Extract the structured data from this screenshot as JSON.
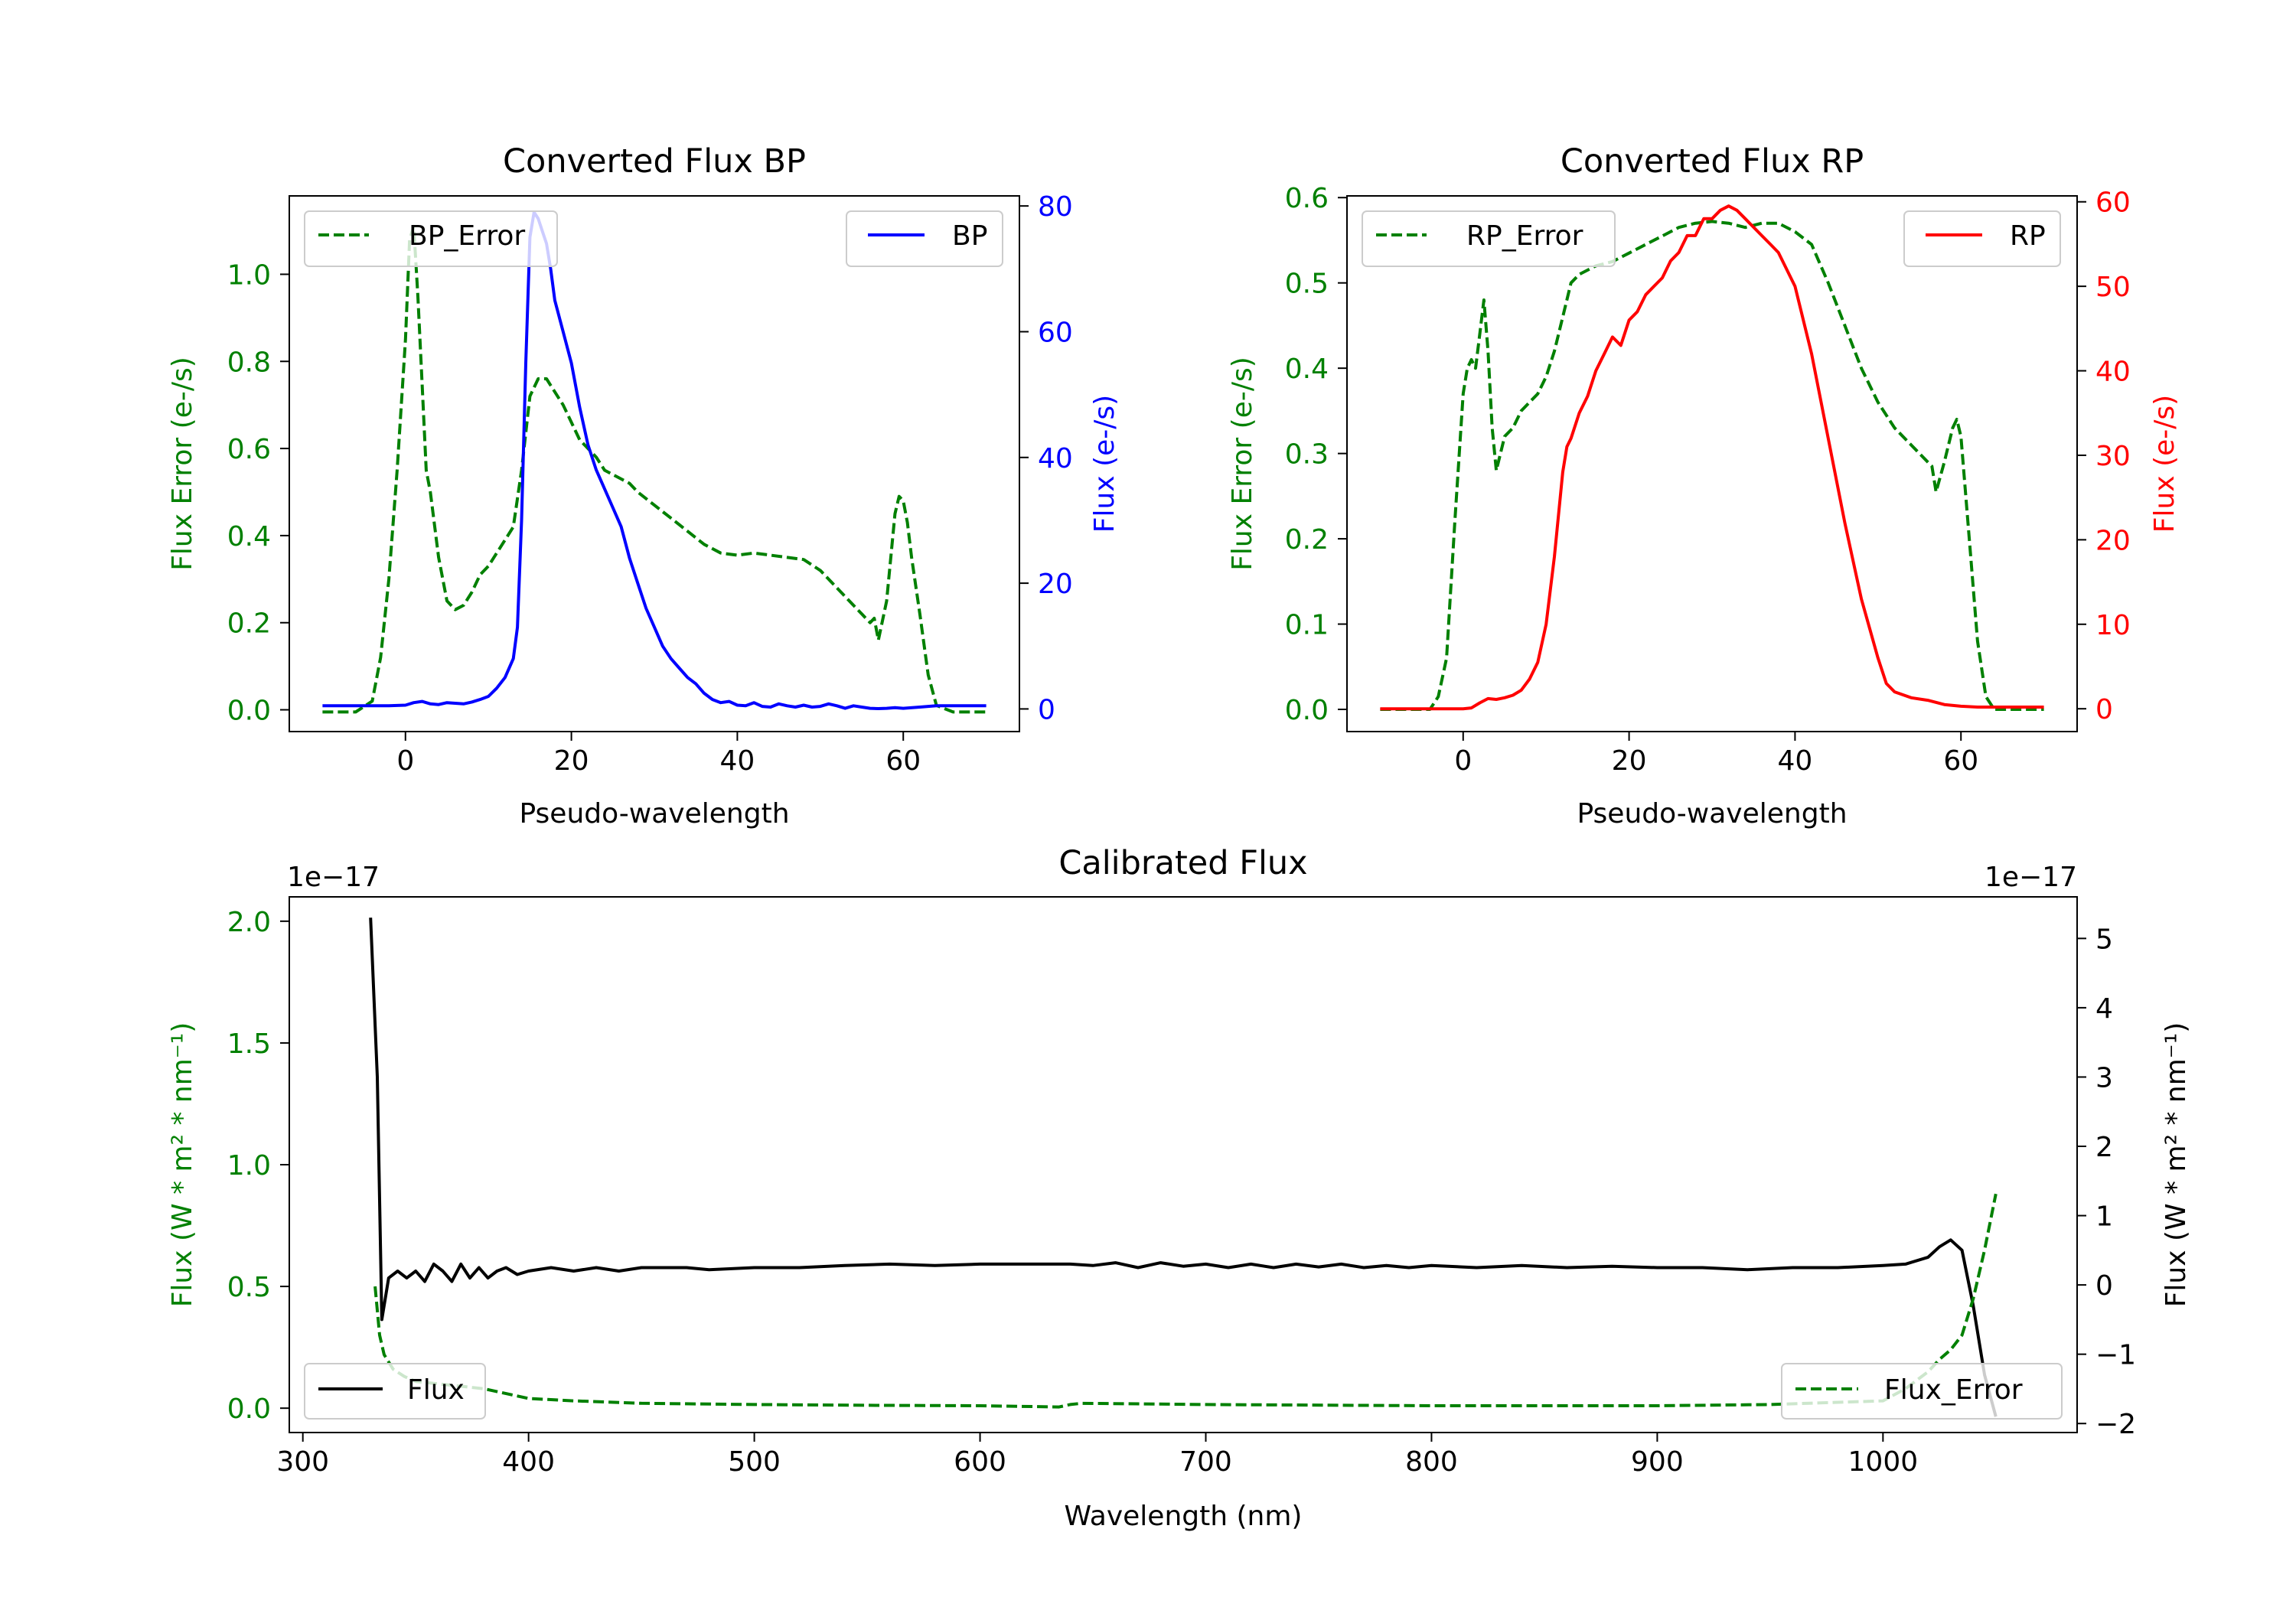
{
  "chart_data": [
    {
      "type": "line",
      "title": "Converted Flux BP",
      "xlabel": "Pseudo-wavelength",
      "xlim": [
        -14,
        74
      ],
      "xticks": [
        0,
        20,
        40,
        60
      ],
      "left_axis": {
        "label": "Flux Error (e-/s)",
        "color": "#008000",
        "ylim": [
          -0.05,
          1.18
        ],
        "ticks": [
          "0.0",
          "0.2",
          "0.4",
          "0.6",
          "0.8",
          "1.0"
        ],
        "tick_values": [
          0,
          0.2,
          0.4,
          0.6,
          0.8,
          1.0
        ]
      },
      "right_axis": {
        "label": "Flux (e-/s)",
        "color": "#0000ff",
        "ylim": [
          -3.6,
          81.6
        ],
        "ticks": [
          "0",
          "20",
          "40",
          "60",
          "80"
        ],
        "tick_values": [
          0,
          20,
          40,
          60,
          80
        ]
      },
      "series": [
        {
          "name": "BP_Error",
          "axis": "left",
          "color": "#008000",
          "dash": true,
          "x": [
            -10,
            -6,
            -4,
            -3,
            -2,
            -1,
            0,
            0.5,
            1,
            1.5,
            2,
            2.5,
            3,
            4,
            5,
            6,
            7,
            8,
            9,
            10,
            11,
            12,
            13,
            14,
            15,
            16,
            17,
            18,
            19,
            20,
            21,
            22,
            23,
            24,
            25,
            26,
            27,
            28,
            30,
            32,
            34,
            36,
            38,
            40,
            42,
            44,
            46,
            48,
            50,
            52,
            54,
            55,
            56,
            56.5,
            57,
            58,
            59,
            59.5,
            60,
            60.5,
            61,
            62,
            63,
            64,
            66,
            68,
            70
          ],
          "y": [
            -0.005,
            -0.005,
            0.02,
            0.12,
            0.3,
            0.55,
            0.85,
            1.08,
            1.11,
            0.95,
            0.75,
            0.55,
            0.5,
            0.35,
            0.25,
            0.23,
            0.24,
            0.27,
            0.31,
            0.33,
            0.36,
            0.39,
            0.42,
            0.55,
            0.72,
            0.76,
            0.76,
            0.73,
            0.7,
            0.66,
            0.62,
            0.6,
            0.58,
            0.55,
            0.54,
            0.53,
            0.52,
            0.5,
            0.47,
            0.44,
            0.41,
            0.38,
            0.36,
            0.355,
            0.36,
            0.355,
            0.35,
            0.345,
            0.32,
            0.28,
            0.24,
            0.22,
            0.2,
            0.21,
            0.16,
            0.25,
            0.45,
            0.49,
            0.48,
            0.43,
            0.35,
            0.22,
            0.08,
            0.01,
            -0.005,
            -0.005,
            -0.005
          ]
        },
        {
          "name": "BP",
          "axis": "right",
          "color": "#0000ff",
          "dash": false,
          "x": [
            -10,
            -6,
            -2,
            0,
            1,
            2,
            3,
            4,
            5,
            6,
            7,
            8,
            9,
            10,
            11,
            12,
            13,
            13.5,
            14,
            14.5,
            15,
            15.5,
            16,
            16.5,
            17,
            17.5,
            18,
            19,
            20,
            21,
            22,
            23,
            24,
            25,
            26,
            27,
            28,
            29,
            30,
            31,
            32,
            33,
            34,
            35,
            36,
            37,
            38,
            39,
            40,
            41,
            42,
            43,
            44,
            45,
            46,
            47,
            48,
            49,
            50,
            51,
            52,
            53,
            54,
            55,
            56,
            57,
            58,
            59,
            60,
            62,
            64,
            66,
            68,
            70
          ],
          "y": [
            0.5,
            0.5,
            0.5,
            0.6,
            1,
            1.2,
            0.8,
            0.7,
            1,
            0.9,
            0.8,
            1.1,
            1.5,
            2,
            3.3,
            5,
            8,
            13,
            30,
            55,
            75,
            79,
            78,
            76,
            74,
            70,
            65,
            60,
            55,
            48,
            42,
            38,
            35,
            32,
            29,
            24,
            20,
            16,
            13,
            10,
            8,
            6.5,
            5,
            4,
            2.5,
            1.5,
            1,
            1.2,
            0.6,
            0.5,
            1,
            0.4,
            0.3,
            0.8,
            0.5,
            0.3,
            0.6,
            0.3,
            0.4,
            0.8,
            0.5,
            0.1,
            0.5,
            0.3,
            0.1,
            0.05,
            0.1,
            0.2,
            0.1,
            0.3,
            0.5,
            0.5,
            0.5,
            0.5
          ]
        }
      ],
      "legend": [
        {
          "label": "BP_Error",
          "placement": "upper-left"
        },
        {
          "label": "BP",
          "placement": "upper-right"
        }
      ]
    },
    {
      "type": "line",
      "title": "Converted Flux RP",
      "xlabel": "Pseudo-wavelength",
      "xlim": [
        -14,
        74
      ],
      "xticks": [
        0,
        20,
        40,
        60
      ],
      "left_axis": {
        "label": "Flux Error (e-/s)",
        "color": "#008000",
        "ylim": [
          -0.026,
          0.602
        ],
        "ticks": [
          "0.0",
          "0.1",
          "0.2",
          "0.3",
          "0.4",
          "0.5",
          "0.6"
        ],
        "tick_values": [
          0,
          0.1,
          0.2,
          0.3,
          0.4,
          0.5,
          0.6
        ]
      },
      "right_axis": {
        "label": "Flux (e-/s)",
        "color": "#ff0000",
        "ylim": [
          -2.7,
          60.7
        ],
        "ticks": [
          "0",
          "10",
          "20",
          "30",
          "40",
          "50",
          "60"
        ],
        "tick_values": [
          0,
          10,
          20,
          30,
          40,
          50,
          60
        ]
      },
      "series": [
        {
          "name": "RP_Error",
          "axis": "left",
          "color": "#008000",
          "dash": true,
          "x": [
            -10,
            -6,
            -4,
            -3,
            -2,
            -1,
            0,
            0.5,
            1,
            1.5,
            2,
            2.5,
            3,
            3.5,
            4,
            5,
            6,
            7,
            8,
            9,
            10,
            11,
            12,
            13,
            14,
            16,
            18,
            20,
            22,
            24,
            26,
            28,
            30,
            32,
            34,
            36,
            38,
            40,
            42,
            44,
            46,
            48,
            50,
            52,
            54,
            55,
            56,
            56.5,
            57,
            58,
            59,
            59.5,
            60,
            61,
            62,
            63,
            64,
            66,
            68,
            70
          ],
          "y": [
            0,
            0,
            0,
            0.015,
            0.06,
            0.22,
            0.37,
            0.4,
            0.41,
            0.4,
            0.44,
            0.48,
            0.42,
            0.33,
            0.28,
            0.32,
            0.33,
            0.35,
            0.36,
            0.37,
            0.39,
            0.42,
            0.46,
            0.5,
            0.51,
            0.52,
            0.525,
            0.535,
            0.545,
            0.555,
            0.565,
            0.57,
            0.572,
            0.57,
            0.565,
            0.57,
            0.57,
            0.56,
            0.545,
            0.5,
            0.45,
            0.4,
            0.36,
            0.33,
            0.31,
            0.3,
            0.29,
            0.285,
            0.255,
            0.29,
            0.33,
            0.34,
            0.32,
            0.2,
            0.08,
            0.015,
            0,
            0,
            0,
            0
          ]
        },
        {
          "name": "RP",
          "axis": "right",
          "color": "#ff0000",
          "dash": false,
          "x": [
            -10,
            -6,
            -4,
            -2,
            0,
            1,
            2,
            3,
            4,
            5,
            6,
            7,
            8,
            9,
            10,
            11,
            12,
            12.5,
            13,
            14,
            15,
            16,
            17,
            18,
            19,
            20,
            21,
            22,
            23,
            24,
            25,
            26,
            27,
            28,
            29,
            30,
            31,
            32,
            33,
            34,
            35,
            36,
            37,
            38,
            40,
            42,
            44,
            46,
            48,
            50,
            51,
            52,
            54,
            56,
            58,
            60,
            62,
            64,
            66,
            68,
            70
          ],
          "y": [
            0,
            0,
            0,
            0,
            0,
            0.1,
            0.7,
            1.2,
            1.1,
            1.3,
            1.6,
            2.2,
            3.5,
            5.5,
            10,
            18,
            28,
            31,
            32,
            35,
            37,
            40,
            42,
            44,
            43,
            46,
            47,
            49,
            50,
            51,
            53,
            54,
            56,
            56,
            58,
            58,
            59,
            59.5,
            59,
            58,
            57,
            56,
            55,
            54,
            50,
            42,
            32,
            22,
            13,
            6,
            3,
            2,
            1.3,
            1,
            0.5,
            0.3,
            0.2,
            0.2,
            0.2,
            0.2,
            0.2
          ]
        }
      ],
      "legend": [
        {
          "label": "RP_Error",
          "placement": "upper-left"
        },
        {
          "label": "RP",
          "placement": "upper-right"
        }
      ]
    },
    {
      "type": "line",
      "title": "Calibrated Flux",
      "xlabel": "Wavelength (nm)",
      "xlim": [
        294,
        1086
      ],
      "xticks": [
        300,
        400,
        500,
        600,
        700,
        800,
        900,
        1000
      ],
      "left_axis": {
        "label": "Flux (W * m² * nm⁻¹)",
        "color": "#008000",
        "offset_text": "1e−17",
        "ylim": [
          -0.1,
          2.1
        ],
        "ticks": [
          "0.0",
          "0.5",
          "1.0",
          "1.5",
          "2.0"
        ],
        "tick_values": [
          0,
          0.5,
          1.0,
          1.5,
          2.0
        ]
      },
      "right_axis": {
        "label": "Flux (W * m² * nm⁻¹)",
        "color": "#000000",
        "offset_text": "1e−17",
        "ylim": [
          -2.13,
          5.6
        ],
        "ticks": [
          "−2",
          "−1",
          "0",
          "1",
          "2",
          "3",
          "4",
          "5"
        ],
        "tick_values": [
          -2,
          -1,
          0,
          1,
          2,
          3,
          4,
          5
        ]
      },
      "series": [
        {
          "name": "Flux",
          "axis": "right",
          "color": "#000000",
          "dash": false,
          "x": [
            330,
            333,
            335,
            338,
            342,
            346,
            350,
            354,
            358,
            362,
            366,
            370,
            374,
            378,
            382,
            386,
            390,
            395,
            400,
            410,
            420,
            430,
            440,
            450,
            460,
            470,
            480,
            500,
            520,
            540,
            560,
            580,
            600,
            620,
            640,
            650,
            660,
            670,
            680,
            690,
            700,
            710,
            720,
            730,
            740,
            750,
            760,
            770,
            780,
            790,
            800,
            820,
            840,
            860,
            880,
            900,
            920,
            940,
            960,
            980,
            1000,
            1010,
            1020,
            1025,
            1030,
            1035,
            1040,
            1045,
            1050
          ],
          "y": [
            5.3,
            3,
            -0.5,
            0.1,
            0.2,
            0.1,
            0.2,
            0.05,
            0.3,
            0.2,
            0.05,
            0.3,
            0.1,
            0.25,
            0.1,
            0.2,
            0.25,
            0.15,
            0.2,
            0.25,
            0.2,
            0.25,
            0.2,
            0.25,
            0.25,
            0.25,
            0.22,
            0.25,
            0.25,
            0.28,
            0.3,
            0.28,
            0.3,
            0.3,
            0.3,
            0.28,
            0.32,
            0.25,
            0.32,
            0.27,
            0.3,
            0.25,
            0.3,
            0.25,
            0.3,
            0.26,
            0.3,
            0.25,
            0.28,
            0.25,
            0.28,
            0.25,
            0.28,
            0.25,
            0.27,
            0.25,
            0.25,
            0.22,
            0.25,
            0.25,
            0.28,
            0.3,
            0.4,
            0.55,
            0.65,
            0.5,
            -0.3,
            -1.3,
            -1.9
          ]
        },
        {
          "name": "Flux_Error",
          "axis": "left",
          "color": "#008000",
          "dash": true,
          "x": [
            332,
            334,
            336,
            340,
            345,
            350,
            360,
            370,
            380,
            390,
            400,
            420,
            450,
            500,
            550,
            600,
            635,
            640,
            645,
            700,
            800,
            900,
            950,
            1000,
            1010,
            1020,
            1025,
            1030,
            1035,
            1040,
            1045,
            1050
          ],
          "y": [
            0.5,
            0.3,
            0.22,
            0.16,
            0.13,
            0.11,
            0.1,
            0.09,
            0.08,
            0.06,
            0.04,
            0.03,
            0.02,
            0.015,
            0.012,
            0.01,
            0.005,
            0.015,
            0.02,
            0.015,
            0.01,
            0.01,
            0.015,
            0.03,
            0.08,
            0.15,
            0.2,
            0.24,
            0.3,
            0.45,
            0.65,
            0.88
          ]
        }
      ],
      "legend": [
        {
          "label": "Flux",
          "placement": "lower-left"
        },
        {
          "label": "Flux_Error",
          "placement": "lower-right"
        }
      ]
    }
  ]
}
